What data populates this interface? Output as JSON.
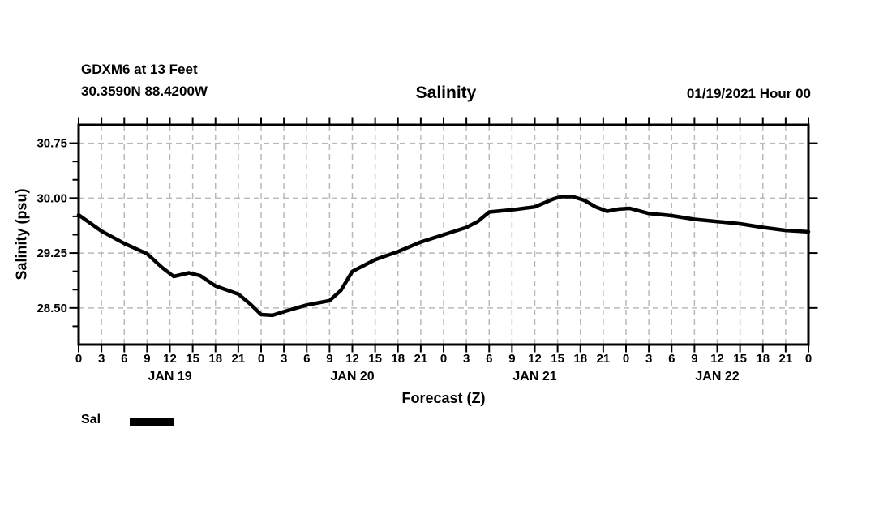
{
  "header": {
    "station_name": "GDXM6 at 13 Feet",
    "station_coords": "30.3590N 88.4200W",
    "title": "Salinity",
    "run_time": "01/19/2021 Hour 00"
  },
  "legend": {
    "label": "Sal"
  },
  "colors": {
    "line": "#000000",
    "grid": "#b9b9b9",
    "text": "#000000",
    "background": "#ffffff"
  },
  "chart_data": {
    "type": "line",
    "title": "Salinity",
    "xlabel": "Forecast (Z)",
    "ylabel": "Salinity (psu)",
    "xlim": [
      0,
      96
    ],
    "ylim": [
      28.0,
      31.0
    ],
    "grid": true,
    "x_major_tick_step_hours": 3,
    "x_hour_label_cycle": [
      0,
      3,
      6,
      9,
      12,
      15,
      18,
      21
    ],
    "day_labels": [
      {
        "label": "JAN 19",
        "center_hour": 12
      },
      {
        "label": "JAN 20",
        "center_hour": 36
      },
      {
        "label": "JAN 21",
        "center_hour": 60
      },
      {
        "label": "JAN 22",
        "center_hour": 84
      }
    ],
    "y_major_ticks": [
      28.5,
      29.25,
      30.0,
      30.75
    ],
    "y_minor_tick_step": 0.25,
    "legend_position": "bottom-left",
    "series": [
      {
        "name": "Sal",
        "units": "psu",
        "points": [
          [
            0,
            29.77
          ],
          [
            3,
            29.55
          ],
          [
            6,
            29.38
          ],
          [
            9,
            29.24
          ],
          [
            11,
            29.05
          ],
          [
            12.5,
            28.93
          ],
          [
            14.5,
            28.98
          ],
          [
            16,
            28.94
          ],
          [
            18,
            28.8
          ],
          [
            21,
            28.69
          ],
          [
            22.5,
            28.56
          ],
          [
            24,
            28.41
          ],
          [
            25.5,
            28.4
          ],
          [
            27,
            28.45
          ],
          [
            30,
            28.54
          ],
          [
            33,
            28.6
          ],
          [
            34.5,
            28.74
          ],
          [
            36,
            29.0
          ],
          [
            39,
            29.16
          ],
          [
            42,
            29.27
          ],
          [
            45,
            29.4
          ],
          [
            48,
            29.5
          ],
          [
            51,
            29.6
          ],
          [
            52.5,
            29.68
          ],
          [
            54,
            29.81
          ],
          [
            57,
            29.84
          ],
          [
            60,
            29.88
          ],
          [
            62.5,
            29.99
          ],
          [
            63.5,
            30.02
          ],
          [
            65,
            30.02
          ],
          [
            66.5,
            29.97
          ],
          [
            68,
            29.88
          ],
          [
            69.5,
            29.82
          ],
          [
            71,
            29.85
          ],
          [
            72.5,
            29.86
          ],
          [
            75,
            29.79
          ],
          [
            78,
            29.76
          ],
          [
            81,
            29.71
          ],
          [
            84,
            29.68
          ],
          [
            87,
            29.65
          ],
          [
            90,
            29.6
          ],
          [
            93,
            29.56
          ],
          [
            96,
            29.54
          ]
        ]
      }
    ]
  }
}
